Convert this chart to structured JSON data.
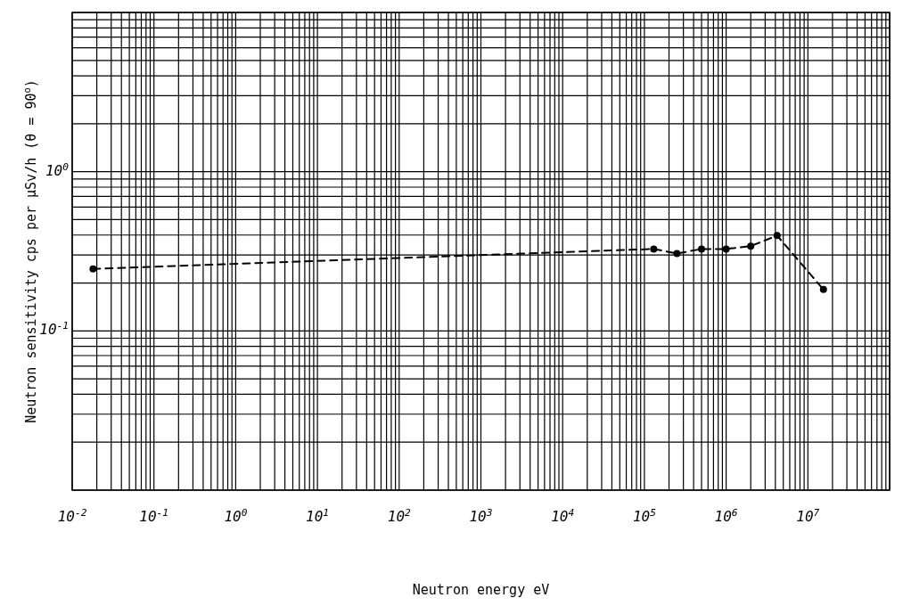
{
  "chart_data": {
    "type": "line",
    "xlabel": "Neutron energy eV",
    "ylabel": "Neutron sensitivity cps per μSv/h (θ = 90$^{o}$)",
    "log": "xy",
    "grid": true,
    "marker": "circle",
    "line_style": "dashed",
    "xlim": [
      0.01,
      100000000
    ],
    "ylim": [
      0.01,
      10
    ],
    "xticks": [
      {
        "value": 0.01,
        "label": "10$^{-2}$"
      },
      {
        "value": 0.1,
        "label": "10$^{-1}$"
      },
      {
        "value": 1,
        "label": "10$^{0}$"
      },
      {
        "value": 10,
        "label": "10$^{1}$"
      },
      {
        "value": 100,
        "label": "10$^{2}$"
      },
      {
        "value": 1000,
        "label": "10$^{3}$"
      },
      {
        "value": 10000,
        "label": "10$^{4}$"
      },
      {
        "value": 100000,
        "label": "10$^{5}$"
      },
      {
        "value": 1000000,
        "label": "10$^{6}$"
      },
      {
        "value": 10000000,
        "label": "10$^{7}$"
      }
    ],
    "yticks": [
      {
        "value": 0.1,
        "label": "10$^{-1}$"
      },
      {
        "value": 1,
        "label": "10$^{0}$"
      }
    ],
    "series": [
      {
        "color": "#000000",
        "x": [
          0.018,
          130000,
          250000,
          500000,
          1000000,
          2000000,
          4200000,
          15500000
        ],
        "values": [
          0.245,
          0.327,
          0.306,
          0.327,
          0.327,
          0.341,
          0.397,
          0.182
        ]
      }
    ]
  }
}
